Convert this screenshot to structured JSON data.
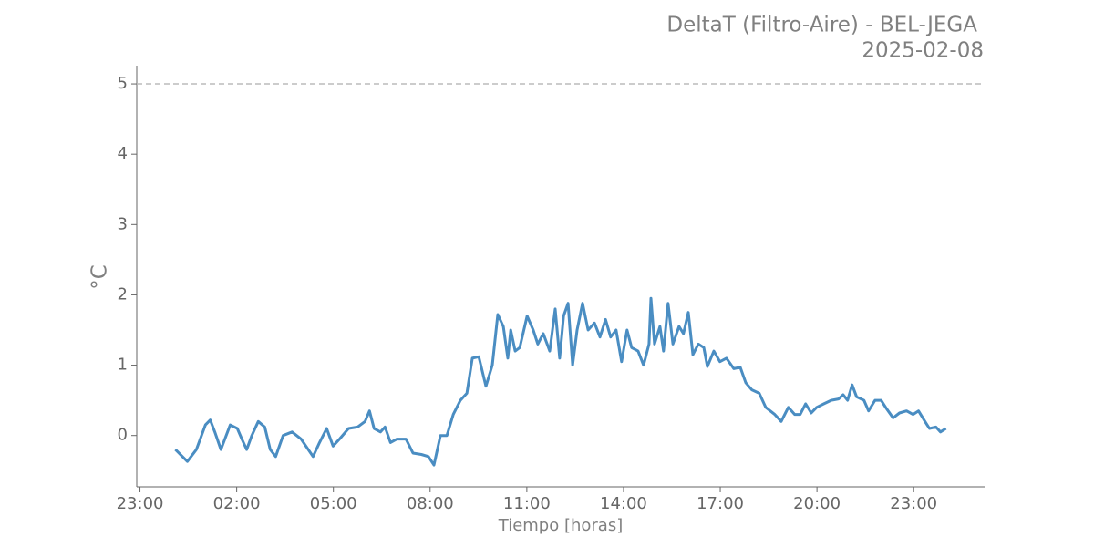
{
  "chart_data": {
    "type": "line",
    "title": "DeltaT (Filtro-Aire) - BEL-JEGA",
    "subtitle": "2025-02-08",
    "xlabel": "Tiempo [horas]",
    "ylabel": "°C",
    "x": [
      0.1,
      0.47,
      0.75,
      1.03,
      1.18,
      1.32,
      1.51,
      1.8,
      2.02,
      2.16,
      2.31,
      2.47,
      2.67,
      2.87,
      3.04,
      3.21,
      3.44,
      3.72,
      4.0,
      4.37,
      4.57,
      4.79,
      4.99,
      5.19,
      5.47,
      5.75,
      5.98,
      6.12,
      6.26,
      6.46,
      6.6,
      6.77,
      6.97,
      7.25,
      7.47,
      7.73,
      7.95,
      8.12,
      8.32,
      8.52,
      8.72,
      8.94,
      9.14,
      9.31,
      9.51,
      9.73,
      9.93,
      10.1,
      10.27,
      10.41,
      10.5,
      10.64,
      10.78,
      11.01,
      11.2,
      11.34,
      11.51,
      11.71,
      11.88,
      12.02,
      12.14,
      12.28,
      12.42,
      12.56,
      12.73,
      12.9,
      13.1,
      13.27,
      13.44,
      13.6,
      13.77,
      13.94,
      14.11,
      14.25,
      14.45,
      14.62,
      14.79,
      14.85,
      14.96,
      15.13,
      15.24,
      15.38,
      15.53,
      15.72,
      15.86,
      16.01,
      16.15,
      16.32,
      16.49,
      16.6,
      16.8,
      16.99,
      17.19,
      17.42,
      17.62,
      17.79,
      17.98,
      18.21,
      18.41,
      18.69,
      18.89,
      19.11,
      19.31,
      19.48,
      19.65,
      19.82,
      19.99,
      20.21,
      20.44,
      20.67,
      20.81,
      20.95,
      21.09,
      21.23,
      21.46,
      21.6,
      21.8,
      21.99,
      22.16,
      22.36,
      22.56,
      22.78,
      22.98,
      23.15,
      23.35,
      23.49,
      23.69,
      23.83,
      24.0
    ],
    "series": [
      {
        "color": "#4a8dc2",
        "values": [
          -0.2,
          -0.37,
          -0.2,
          0.15,
          0.22,
          0.05,
          -0.2,
          0.15,
          0.1,
          -0.05,
          -0.2,
          0.0,
          0.2,
          0.12,
          -0.2,
          -0.3,
          0.0,
          0.05,
          -0.05,
          -0.3,
          -0.1,
          0.1,
          -0.15,
          -0.05,
          0.1,
          0.12,
          0.2,
          0.35,
          0.1,
          0.05,
          0.12,
          -0.1,
          -0.05,
          -0.05,
          -0.25,
          -0.27,
          -0.3,
          -0.42,
          0.0,
          0.0,
          0.3,
          0.5,
          0.6,
          1.1,
          1.12,
          0.7,
          1.0,
          1.72,
          1.55,
          1.1,
          1.5,
          1.2,
          1.25,
          1.7,
          1.5,
          1.3,
          1.45,
          1.2,
          1.8,
          1.1,
          1.7,
          1.88,
          1.0,
          1.5,
          1.88,
          1.5,
          1.6,
          1.4,
          1.65,
          1.4,
          1.5,
          1.05,
          1.5,
          1.25,
          1.2,
          1.0,
          1.3,
          1.95,
          1.3,
          1.55,
          1.2,
          1.88,
          1.3,
          1.55,
          1.45,
          1.75,
          1.15,
          1.3,
          1.25,
          0.98,
          1.2,
          1.05,
          1.1,
          0.95,
          0.97,
          0.75,
          0.65,
          0.6,
          0.4,
          0.3,
          0.2,
          0.4,
          0.3,
          0.3,
          0.45,
          0.32,
          0.4,
          0.45,
          0.5,
          0.52,
          0.58,
          0.5,
          0.72,
          0.55,
          0.5,
          0.35,
          0.5,
          0.5,
          0.38,
          0.25,
          0.32,
          0.35,
          0.3,
          0.35,
          0.2,
          0.1,
          0.12,
          0.05,
          0.1
        ]
      }
    ],
    "xlim": [
      -1.1,
      25.2
    ],
    "xticks": [
      {
        "value": -1,
        "label": "23:00"
      },
      {
        "value": 2,
        "label": "02:00"
      },
      {
        "value": 5,
        "label": "05:00"
      },
      {
        "value": 8,
        "label": "08:00"
      },
      {
        "value": 11,
        "label": "11:00"
      },
      {
        "value": 14,
        "label": "14:00"
      },
      {
        "value": 17,
        "label": "17:00"
      },
      {
        "value": 20,
        "label": "20:00"
      },
      {
        "value": 23,
        "label": "23:00"
      }
    ],
    "ylim": [
      -0.73,
      5.26
    ],
    "yticks": [
      0,
      1,
      2,
      3,
      4,
      5
    ],
    "hline": {
      "value": 5,
      "color": "#bbbbbb"
    }
  }
}
